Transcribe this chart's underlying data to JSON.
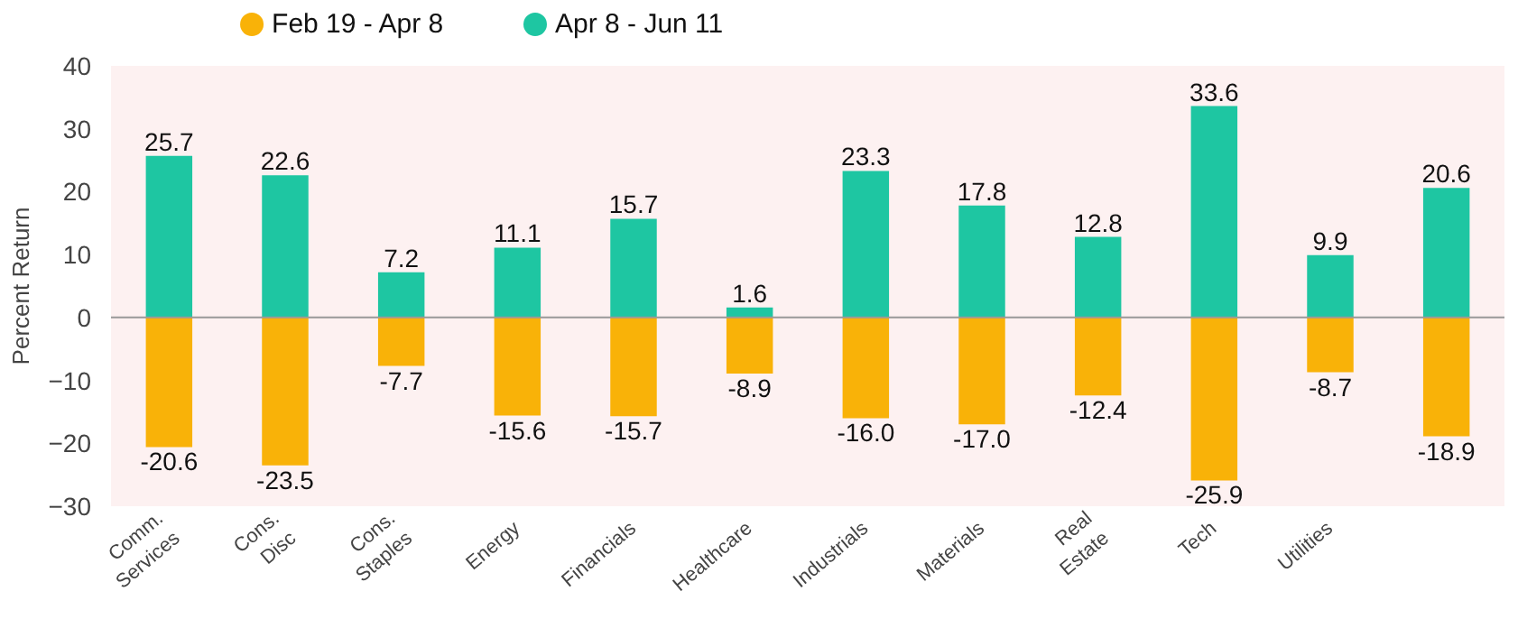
{
  "chart_data": {
    "type": "bar",
    "ylabel": "Percent Return",
    "categories": [
      "Comm.\nServices",
      "Cons.\nDisc",
      "Cons.\nStaples",
      "Energy",
      "Financials",
      "Healthcare",
      "Industrials",
      "Materials",
      "Real\nEstate",
      "Tech",
      "Utilities",
      null
    ],
    "series": [
      {
        "name": "Feb 19 - Apr 8",
        "color": "#f9b208",
        "values": [
          -20.6,
          -23.5,
          -7.7,
          -15.6,
          -15.7,
          -8.9,
          -16.0,
          -17.0,
          -12.4,
          -25.9,
          -8.7,
          -18.9
        ],
        "value_labels": [
          "-20.6",
          "-23.5",
          "-7.7",
          "-15.6",
          "-15.7",
          "-8.9",
          "-16.0",
          "-17.0",
          "-12.4",
          "-25.9",
          "-8.7",
          "-18.9"
        ]
      },
      {
        "name": "Apr 8 - Jun 11",
        "color": "#1ec6a2",
        "values": [
          25.7,
          22.6,
          7.2,
          11.1,
          15.7,
          1.6,
          23.3,
          17.8,
          12.8,
          33.6,
          9.9,
          20.6
        ]
      }
    ],
    "stacked": true,
    "ylim": [
      -30,
      40
    ],
    "yticks": [
      -30,
      -20,
      -10,
      0,
      10,
      20,
      30,
      40
    ],
    "ref_lines": [
      {
        "axis": "y",
        "value": 0,
        "color": "#999999"
      }
    ],
    "data_labels": true,
    "legend": "top left",
    "grid": false
  }
}
